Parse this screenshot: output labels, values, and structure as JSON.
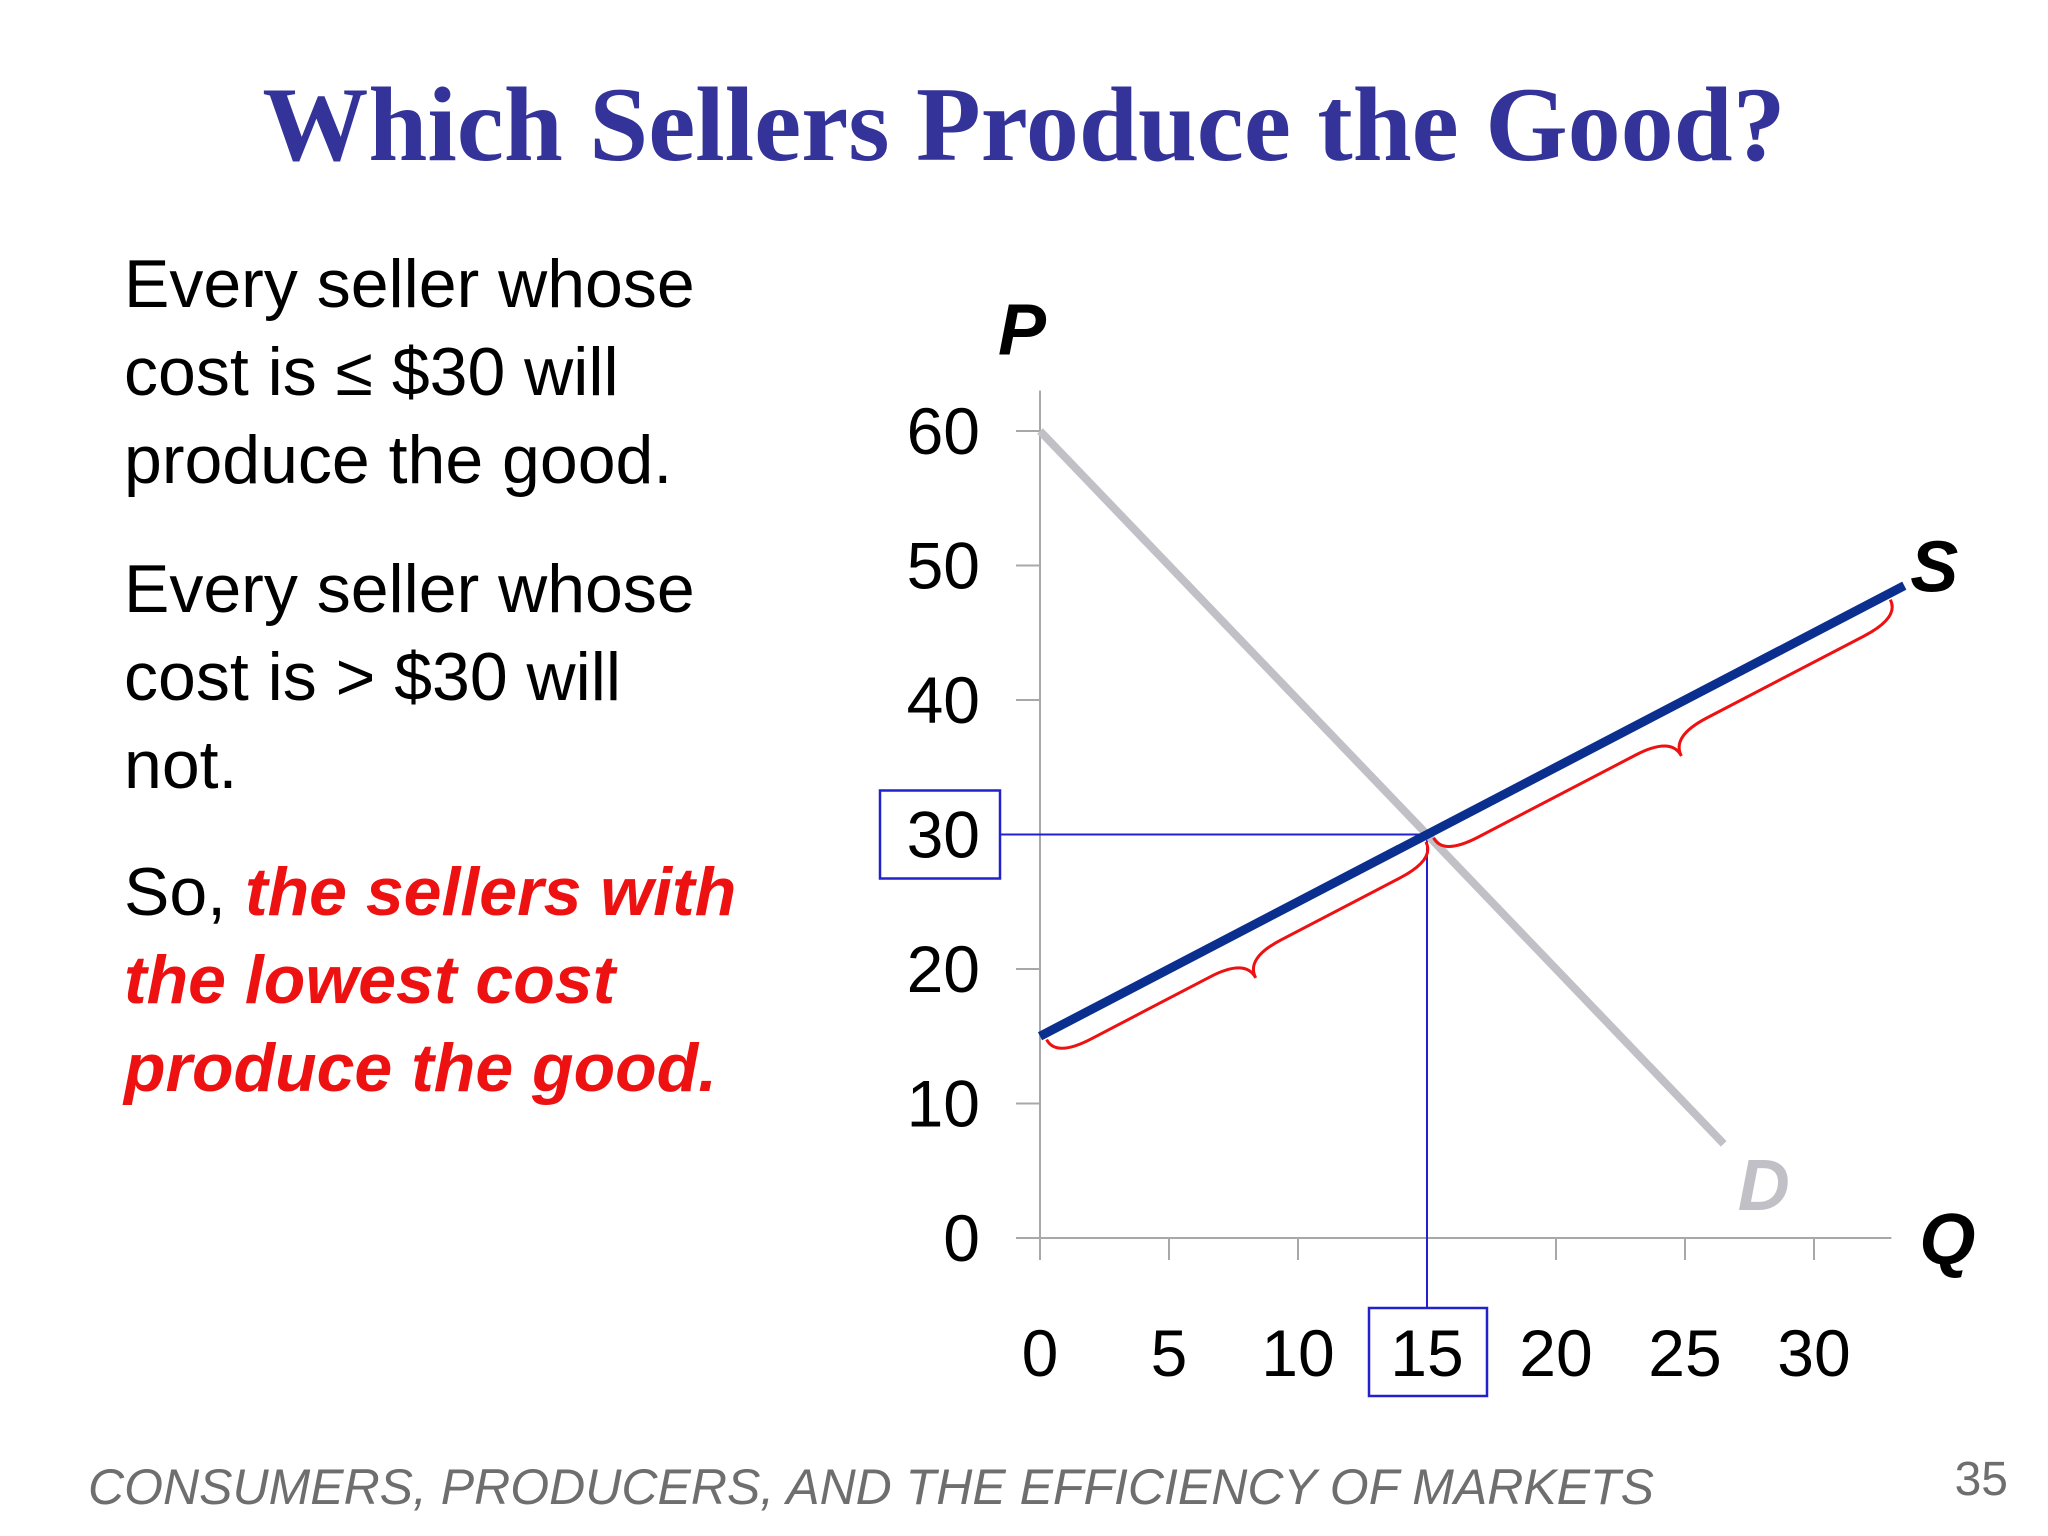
{
  "slide": {
    "title": "Which Sellers Produce the Good?",
    "paragraphs": [
      {
        "lines": [
          "Every seller whose",
          "cost is ≤ $30 will",
          "produce the good."
        ]
      },
      {
        "lines": [
          "Every seller whose",
          "cost is > $30 will",
          "not."
        ]
      },
      {
        "prefix": "So, ",
        "emphasis_lines": [
          "the sellers with",
          "the lowest cost",
          "produce the good."
        ]
      }
    ],
    "footer": "CONSUMERS, PRODUCERS, AND THE EFFICIENCY OF MARKETS",
    "page_number": "35"
  },
  "chart_data": {
    "type": "line",
    "xlabel": "Q",
    "ylabel": "P",
    "xlim": [
      0,
      33
    ],
    "ylim": [
      0,
      63
    ],
    "xticks": [
      0,
      5,
      10,
      15,
      20,
      25,
      30
    ],
    "yticks": [
      0,
      10,
      20,
      30,
      40,
      50,
      60
    ],
    "grid": false,
    "series": [
      {
        "name": "S",
        "color": "#0a2f8f",
        "x": [
          0,
          33.5
        ],
        "y": [
          15,
          48.5
        ]
      },
      {
        "name": "D",
        "color": "#c0c0c6",
        "x": [
          0,
          26.5
        ],
        "y": [
          60,
          7
        ]
      }
    ],
    "equilibrium": {
      "x": 15,
      "y": 30,
      "color": "#2222cc"
    },
    "highlighted_ticks": {
      "x": "15",
      "y": "30"
    },
    "braces": [
      {
        "x": [
          0,
          15
        ],
        "color": "#ee1111"
      },
      {
        "x": [
          15,
          33
        ],
        "color": "#ee1111"
      }
    ],
    "colors": {
      "title": "#333399",
      "emphasis": "#ee1111",
      "footer": "#6e6e6e"
    }
  }
}
